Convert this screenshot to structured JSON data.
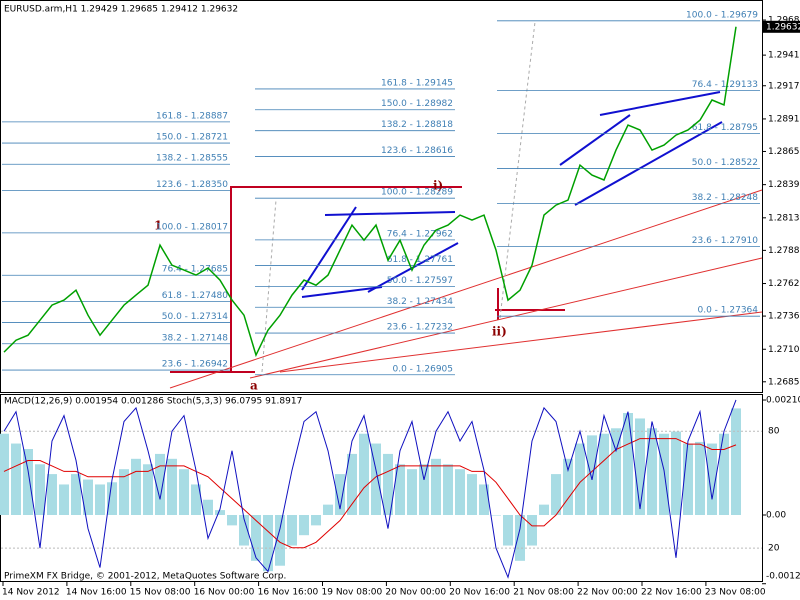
{
  "header": "EURUSD.arm,H1 1.29429 1.29685 1.29412 1.29632",
  "price_panel": {
    "ylim": [
      1.2677,
      1.29842
    ],
    "yticks": [
      1.29685,
      {
        "value": 1.2941,
        "label": "1.29410"
      },
      {
        "value": 1.2917,
        "label": "1.29170"
      },
      {
        "value": 1.2891,
        "label": "1.28910"
      },
      1.28655,
      1.28395,
      1.28135,
      {
        "value": 1.2788,
        "label": "1.27880"
      },
      {
        "value": 1.2762,
        "label": "1.27620"
      },
      1.27365,
      1.27105,
      {
        "value": 1.2685,
        "label": "1.26850"
      }
    ],
    "current_price": 1.29632,
    "color": "#00a000",
    "close": [
      1.27083,
      1.27176,
      1.27215,
      1.27333,
      1.27451,
      1.2749,
      1.27568,
      1.27372,
      1.27215,
      1.27333,
      1.27451,
      1.27529,
      1.27607,
      1.27921,
      1.27764,
      1.27725,
      1.27686,
      1.27741,
      1.27647,
      1.2749,
      1.27372,
      1.27059,
      1.27255,
      1.27372,
      1.27529,
      1.27647,
      1.27607,
      1.27686,
      1.27882,
      1.28078,
      1.2796,
      1.28078,
      1.27803,
      1.2796,
      1.27725,
      1.27921,
      1.28039,
      1.28078,
      1.28156,
      1.28117,
      1.28156,
      1.27882,
      1.2749,
      1.27568,
      1.27764,
      1.28156,
      1.28235,
      1.28274,
      1.28548,
      1.2847,
      1.28431,
      1.28666,
      1.28862,
      1.28823,
      1.28666,
      1.28705,
      1.28783,
      1.28823,
      1.28901,
      1.29058,
      1.29019,
      1.29632
    ]
  },
  "fib_sets": [
    {
      "levels": [
        {
          "label": "161.8 - 1.28887",
          "value": 1.28887
        },
        {
          "label": "150.0 - 1.28721",
          "value": 1.28721
        },
        {
          "label": "138.2 - 1.28555",
          "value": 1.28555
        },
        {
          "label": "123.6 - 1.28350",
          "value": 1.2835
        },
        {
          "label": "100.0 - 1.28017",
          "value": 1.28017
        },
        {
          "label": "76.4 - 1.27685",
          "value": 1.27685
        },
        {
          "label": "61.8 - 1.27480",
          "value": 1.2748
        },
        {
          "label": "50.0 - 1.27314",
          "value": 1.27314
        },
        {
          "label": "38.2 - 1.27148",
          "value": 1.27148
        },
        {
          "label": "23.6 - 1.26942",
          "value": 1.26942
        }
      ]
    },
    {
      "levels": [
        {
          "label": "161.8 - 1.29145",
          "value": 1.29145
        },
        {
          "label": "150.0 - 1.28982",
          "value": 1.28982
        },
        {
          "label": "138.2 - 1.28818",
          "value": 1.28818
        },
        {
          "label": "123.6 - 1.28616",
          "value": 1.28616
        },
        {
          "label": "100.0 - 1.28289",
          "value": 1.28289
        },
        {
          "label": "76.4 - 1.27962",
          "value": 1.27962
        },
        {
          "label": "61.8 - 1.27761",
          "value": 1.27761
        },
        {
          "label": "50.0 - 1.27597",
          "value": 1.27597
        },
        {
          "label": "38.2 - 1.27434",
          "value": 1.27434
        },
        {
          "label": "23.6 - 1.27232",
          "value": 1.27232
        },
        {
          "label": "0.0 - 1.26905",
          "value": 1.26905
        }
      ]
    },
    {
      "levels": [
        {
          "label": "100.0 - 1.29679",
          "value": 1.29679
        },
        {
          "label": "76.4 - 1.29133",
          "value": 1.29133
        },
        {
          "label": "61.8 - 1.28795",
          "value": 1.28795
        },
        {
          "label": "50.0 - 1.28522",
          "value": 1.28522
        },
        {
          "label": "38.2 - 1.28248",
          "value": 1.28248
        },
        {
          "label": "23.6 - 1.27910",
          "value": 1.2791
        },
        {
          "label": "0.0 - 1.27364",
          "value": 1.27364
        }
      ]
    }
  ],
  "wave_labels": [
    "1",
    "i)",
    "ii)",
    "a"
  ],
  "indicator_panel": {
    "title": "MACD(12,26,9) 0.001954 0.001286 Stoch(5,3,3) 96.0795 91.8917",
    "macd_ylim": [
      -0.00121,
      0.0022
    ],
    "macd_ticks": [
      0.002108,
      {
        "value": 0,
        "label": "0.00"
      },
      -0.00126
    ],
    "stoch_ylim": [
      3.1,
      98.6
    ],
    "stoch_ticks": [
      80,
      20
    ],
    "macd_histogram": [
      0.00149,
      0.00131,
      0.00121,
      0.00093,
      0.00075,
      0.00056,
      0.00075,
      0.00065,
      0.00056,
      0.0006,
      0.00084,
      0.00103,
      0.00093,
      0.00112,
      0.00103,
      0.00084,
      0.00056,
      0.00028,
      9e-05,
      -0.00019,
      -0.00056,
      -0.00084,
      -0.00103,
      -0.00093,
      -0.00056,
      -0.00037,
      -0.00019,
      0.00019,
      0.00075,
      0.00112,
      0.00149,
      0.00131,
      0.00112,
      0.00093,
      0.00084,
      0.00093,
      0.00103,
      0.00093,
      0.00084,
      0.00075,
      0.00056,
      0,
      -0.00056,
      -0.00084,
      -0.00056,
      0.00019,
      0.00075,
      0.00103,
      0.00131,
      0.00146,
      0.00149,
      0.00159,
      0.00187,
      0.00177,
      0.00159,
      0.00149,
      0.00153,
      0.00131,
      0.00134,
      0.00131,
      0.00149,
      0.001954
    ],
    "macd_signal": [
      0.0008,
      0.0009,
      0.001,
      0.001,
      0.0009,
      0.0008,
      0.0008,
      0.0007,
      0.0007,
      0.0007,
      0.0007,
      0.0008,
      0.0008,
      0.0009,
      0.0009,
      0.0009,
      0.0008,
      0.0007,
      0.0005,
      0.0003,
      0.0001,
      -0.0001,
      -0.0003,
      -0.0005,
      -0.0006,
      -0.0006,
      -0.0005,
      -0.0003,
      -0.0001,
      0.0002,
      0.0005,
      0.0007,
      0.0008,
      0.0009,
      0.0009,
      0.0009,
      0.0009,
      0.0009,
      0.0009,
      0.0008,
      0.0008,
      0.0006,
      0.0003,
      0,
      -0.0002,
      -0.0002,
      0,
      0.0003,
      0.0006,
      0.0008,
      0.001,
      0.0012,
      0.0013,
      0.0014,
      0.0014,
      0.0014,
      0.0014,
      0.0013,
      0.0013,
      0.0012,
      0.0012,
      0.001286
    ],
    "stoch_main": [
      80,
      90,
      60,
      20,
      75,
      88,
      65,
      30,
      10,
      55,
      85,
      92,
      70,
      45,
      80,
      88,
      60,
      25,
      40,
      70,
      35,
      15,
      8,
      30,
      60,
      85,
      90,
      70,
      40,
      75,
      88,
      60,
      30,
      70,
      85,
      55,
      80,
      90,
      75,
      85,
      60,
      20,
      5,
      30,
      75,
      92,
      85,
      60,
      80,
      55,
      88,
      70,
      90,
      40,
      85,
      60,
      15,
      75,
      90,
      45,
      80,
      96.0795
    ]
  },
  "time_axis": [
    "14 Nov 2012",
    "14 Nov 16:00",
    "15 Nov 08:00",
    "16 Nov 00:00",
    "16 Nov 16:00",
    "19 Nov 08:00",
    "20 Nov 00:00",
    "20 Nov 16:00",
    "21 Nov 08:00",
    "22 Nov 00:00",
    "22 Nov 16:00",
    "23 Nov 08:00"
  ],
  "copyright": "PrimeXM FX Bridge, © 2001-2012, MetaQuotes Software Corp."
}
